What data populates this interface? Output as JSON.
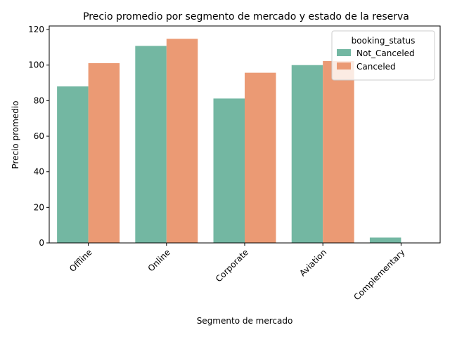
{
  "chart_data": {
    "type": "bar",
    "title": "Precio promedio por segmento de mercado y estado de la reserva",
    "xlabel": "Segmento de mercado",
    "ylabel": "Precio promedio",
    "categories": [
      "Offline",
      "Online",
      "Corporate",
      "Aviation",
      "Complementary"
    ],
    "series": [
      {
        "name": "Not_Canceled",
        "values": [
          88,
          110.8,
          81.2,
          100,
          3
        ],
        "color": "#73b7a2"
      },
      {
        "name": "Canceled",
        "values": [
          101.1,
          114.8,
          95.7,
          102.3,
          0
        ],
        "color": "#eb9a74"
      }
    ],
    "ylim": [
      0,
      122
    ],
    "yticks": [
      0,
      20,
      40,
      60,
      80,
      100,
      120
    ],
    "legend": {
      "title": "booking_status",
      "placement": "top-right"
    },
    "grid": false,
    "xtick_rotation": 45
  }
}
